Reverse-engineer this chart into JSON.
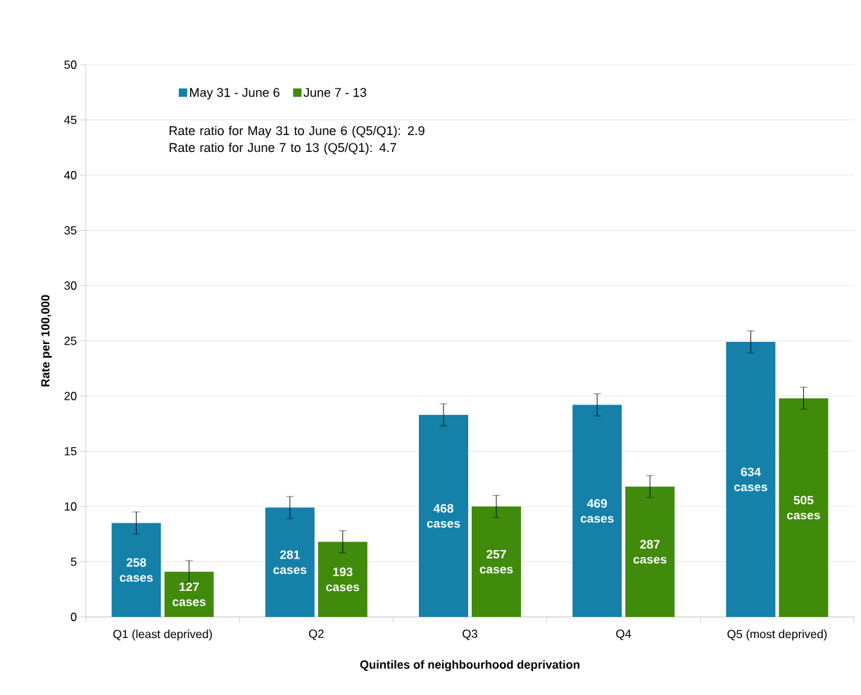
{
  "chart_data": {
    "type": "bar",
    "xlabel": "Quintiles of neighbourhood deprivation",
    "ylabel": "Rate per 100,000",
    "categories": [
      "Q1 (least deprived)",
      "Q2",
      "Q3",
      "Q4",
      "Q5 (most deprived)"
    ],
    "series": [
      {
        "name": "May 31 - June 6",
        "color": "#1580a8",
        "values": [
          8.5,
          9.9,
          18.3,
          19.2,
          24.9
        ],
        "errors": [
          1,
          1,
          1,
          1,
          1
        ]
      },
      {
        "name": "June 7 - 13",
        "color": "#408b0b",
        "values": [
          4.1,
          6.8,
          10.0,
          11.8,
          19.8
        ],
        "errors": [
          1,
          1,
          1,
          1,
          1
        ]
      }
    ],
    "annotations": [
      "Rate ratio for May 31 to June 6 (Q5/Q1): 2.9",
      "Rate ratio for June 7 to 13  (Q5/Q1): 4.7",
      {
        "text": "258 cases",
        "x": "Q1 (least deprived)",
        "y": 4.25
      },
      {
        "text": "281 cases",
        "x": "Q2",
        "y": 4.95
      },
      {
        "text": "468 cases",
        "x": "Q3",
        "y": 9.15
      },
      {
        "text": "469 cases",
        "x": "Q4",
        "y": 9.6
      },
      {
        "text": "634 cases",
        "x": "Q5 (most deprived)",
        "y": 12.45
      },
      {
        "text": "127 cases",
        "x": "Q1 (least deprived)",
        "y": 2.05
      },
      {
        "text": "193 cases",
        "x": "Q2",
        "y": 3.4
      },
      {
        "text": "257 cases",
        "x": "Q3",
        "y": 5.0
      },
      {
        "text": "287 cases",
        "x": "Q4",
        "y": 5.9
      },
      {
        "text": "505 cases",
        "x": "Q5 (most deprived)",
        "y": 9.9
      }
    ],
    "ylim": [
      0,
      50
    ],
    "yticks": [
      0,
      5,
      10,
      15,
      20,
      25,
      30,
      35,
      40,
      45,
      50
    ],
    "grid": "y",
    "legend": "top left"
  }
}
